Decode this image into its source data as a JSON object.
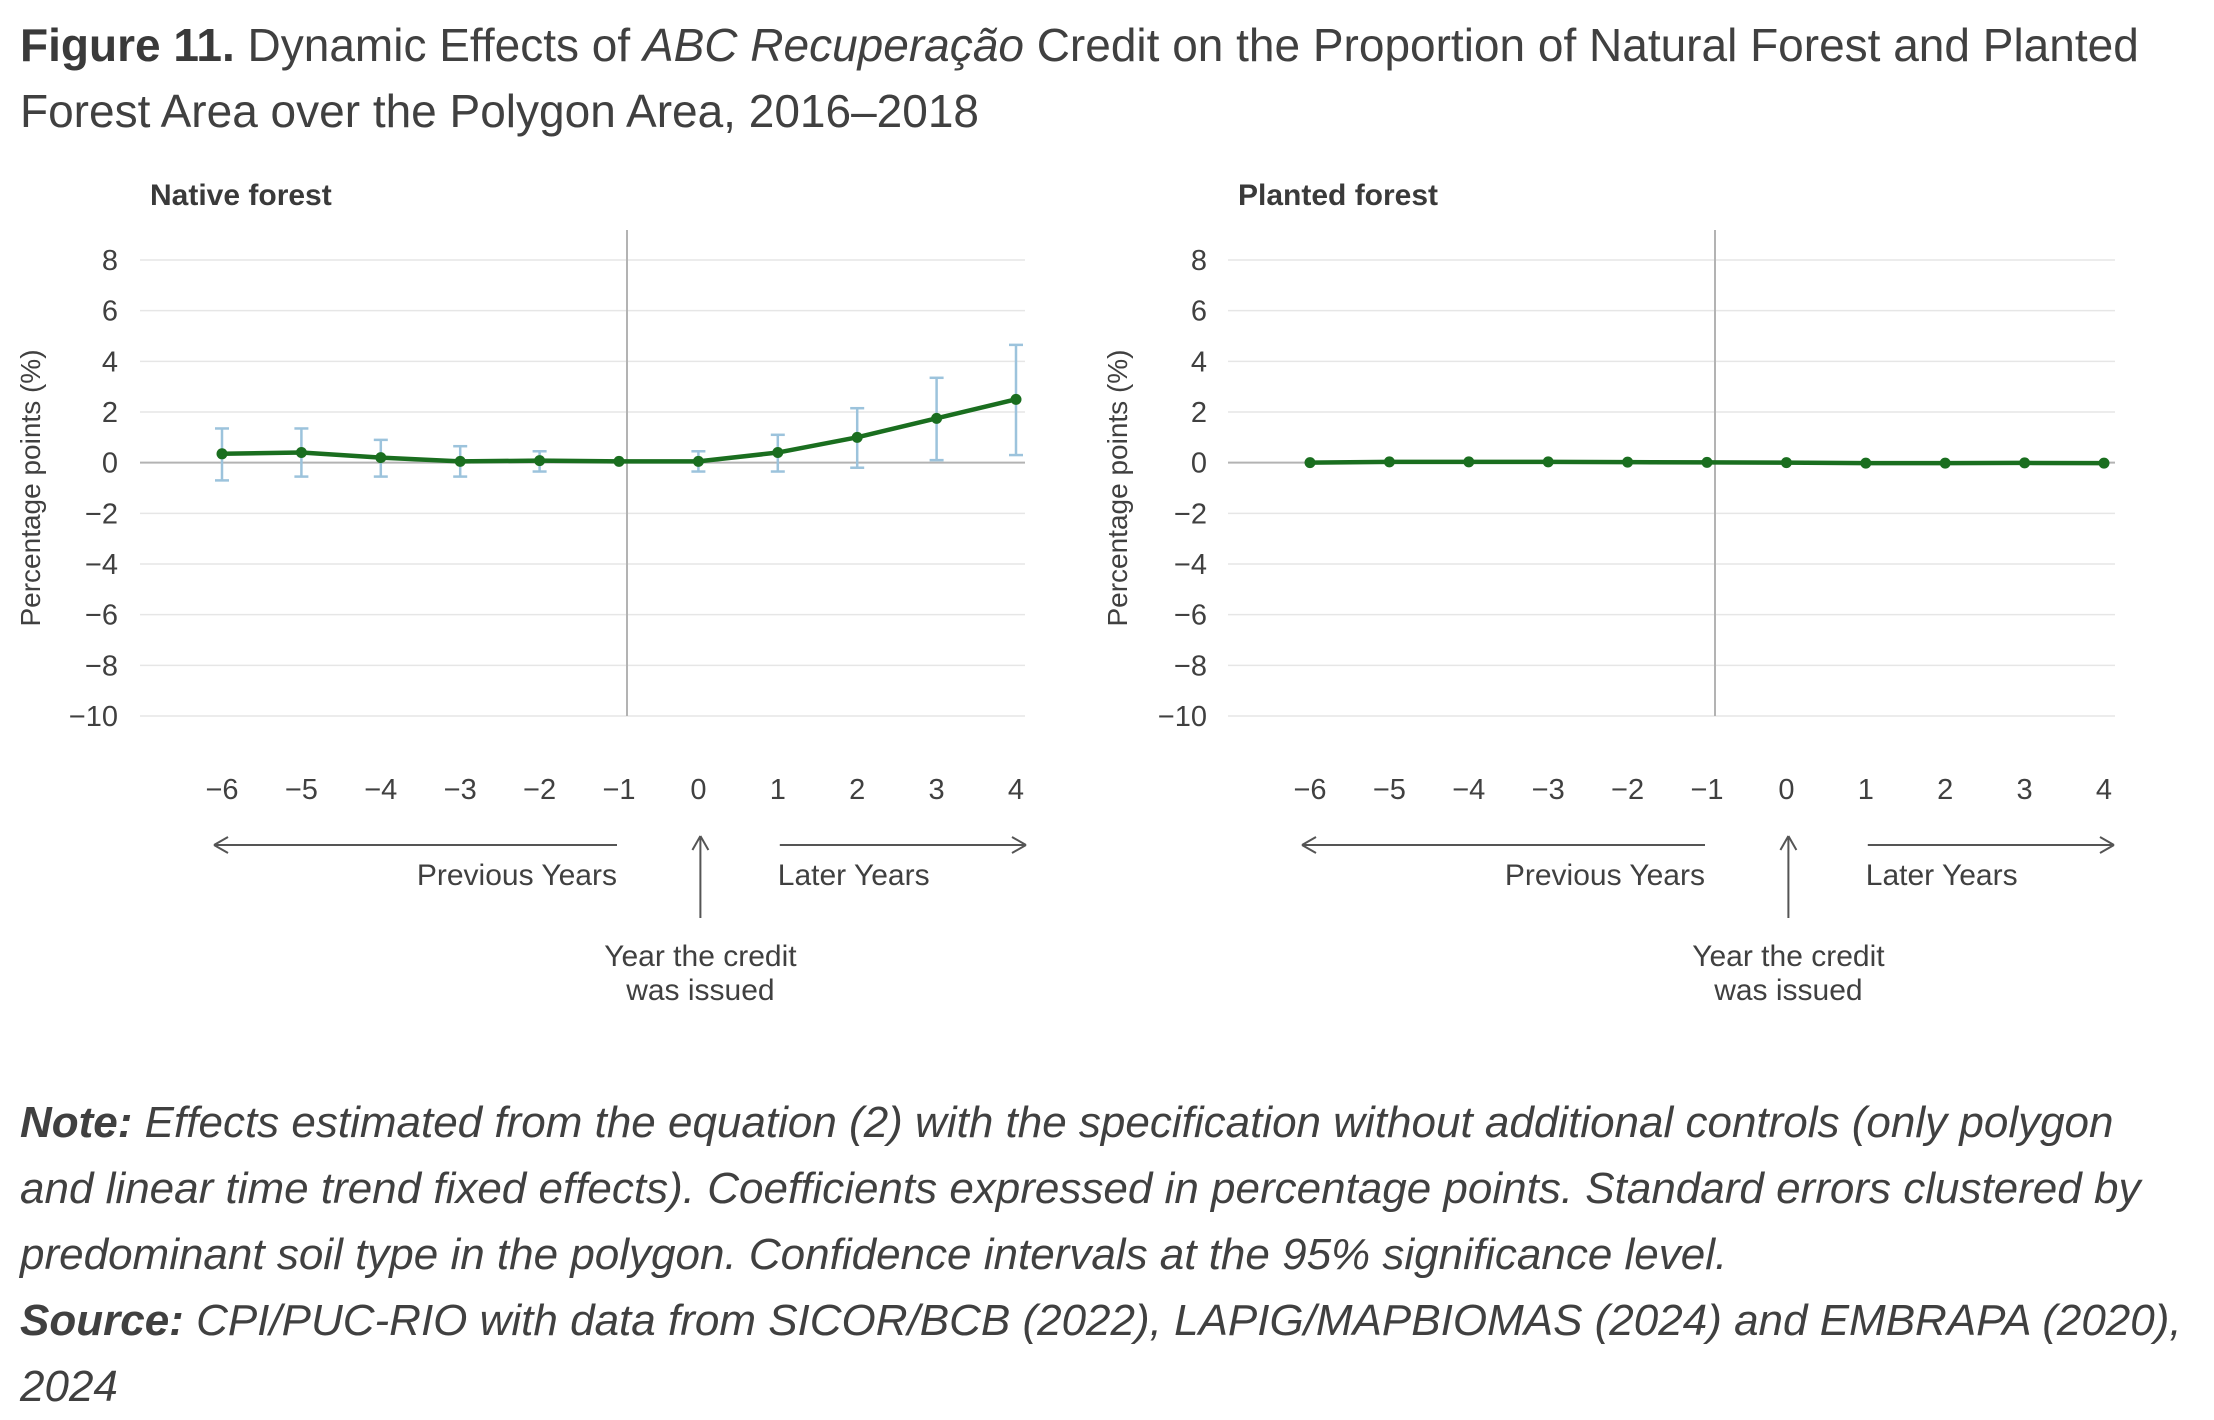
{
  "figure": {
    "label": "Figure 11.",
    "title_pre": "Dynamic Effects of",
    "title_italic": "ABC Recuperação",
    "title_post": "Credit on the Proportion of Natural Forest and Planted Forest Area over the Polygon Area, 2016–2018"
  },
  "colors": {
    "line": "#1a6e1f",
    "error_bar": "#9cc3dc",
    "grid": "#e6e6e6",
    "axis": "#b3b3b3",
    "text": "#404040"
  },
  "chart_data": [
    {
      "type": "line",
      "title": "Native forest",
      "ylabel": "Percentage points (%)",
      "ylim": [
        -10,
        8
      ],
      "yticks": [
        "8",
        "6",
        "4",
        "2",
        "0",
        "−2",
        "−4",
        "−6",
        "−8",
        "−10"
      ],
      "ytick_values": [
        8,
        6,
        4,
        2,
        0,
        -2,
        -4,
        -6,
        -8,
        -10
      ],
      "x": [
        -6,
        -5,
        -4,
        -3,
        -2,
        -1,
        0,
        1,
        2,
        3,
        4
      ],
      "xticks": [
        "−6",
        "−5",
        "−4",
        "−3",
        "−2",
        "−1",
        "0",
        "1",
        "2",
        "3",
        "4"
      ],
      "grid": true,
      "reference_x": -1,
      "series": [
        {
          "values": [
            0.35,
            0.4,
            0.2,
            0.05,
            0.08,
            0.05,
            0.05,
            0.4,
            1.0,
            1.75,
            2.5
          ],
          "ci_low": [
            -0.7,
            -0.55,
            -0.55,
            -0.55,
            -0.35,
            null,
            -0.35,
            -0.35,
            -0.2,
            0.1,
            0.3
          ],
          "ci_high": [
            1.35,
            1.35,
            0.9,
            0.65,
            0.45,
            null,
            0.45,
            1.1,
            2.15,
            3.35,
            4.65
          ]
        }
      ],
      "annotations": {
        "previous": "Previous Years",
        "later": "Later Years",
        "issued_line1": "Year the credit",
        "issued_line2": "was issued"
      }
    },
    {
      "type": "line",
      "title": "Planted forest",
      "ylabel": "Percentage points (%)",
      "ylim": [
        -10,
        8
      ],
      "yticks": [
        "8",
        "6",
        "4",
        "2",
        "0",
        "−2",
        "−4",
        "−6",
        "−8",
        "−10"
      ],
      "ytick_values": [
        8,
        6,
        4,
        2,
        0,
        -2,
        -4,
        -6,
        -8,
        -10
      ],
      "x": [
        -6,
        -5,
        -4,
        -3,
        -2,
        -1,
        0,
        1,
        2,
        3,
        4
      ],
      "xticks": [
        "−6",
        "−5",
        "−4",
        "−3",
        "−2",
        "−1",
        "0",
        "1",
        "2",
        "3",
        "4"
      ],
      "grid": true,
      "reference_x": -1,
      "series": [
        {
          "values": [
            0.0,
            0.03,
            0.03,
            0.03,
            0.02,
            0.01,
            0.0,
            -0.02,
            -0.02,
            -0.01,
            -0.02
          ]
        }
      ],
      "annotations": {
        "previous": "Previous Years",
        "later": "Later Years",
        "issued_line1": "Year the credit",
        "issued_line2": "was issued"
      }
    }
  ],
  "note": {
    "note_label": "Note:",
    "note_text": "Effects estimated from the equation (2) with the specification without additional controls (only polygon and linear time trend fixed effects). Coefficients expressed in percentage points. Standard errors clustered by predominant soil type in the polygon. Confidence intervals at the 95% significance level.",
    "source_label": "Source:",
    "source_text": "CPI/PUC-RIO with data from SICOR/BCB (2022), LAPIG/MAPBIOMAS (2024) and EMBRAPA (2020), 2024"
  }
}
